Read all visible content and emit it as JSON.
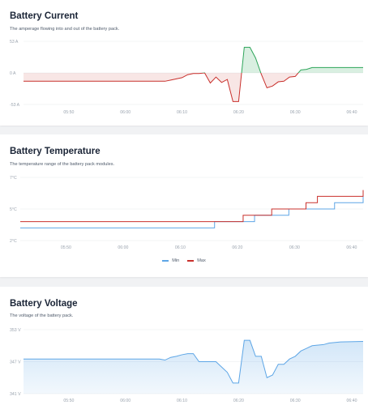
{
  "colors": {
    "current_positive": "#2ea55a",
    "current_negative": "#c9302c",
    "temp_min": "#5ea6e6",
    "temp_max": "#c9302c",
    "voltage": "#5ea6e6",
    "gridline": "#e8eaee",
    "axis_text": "#9aa3ae"
  },
  "charts": {
    "current": {
      "title": "Battery Current",
      "subtitle": "The amperage flowing into and out of the battery pack."
    },
    "temperature": {
      "title": "Battery Temperature",
      "subtitle": "The temperature range of the battery pack modules."
    },
    "voltage": {
      "title": "Battery Voltage",
      "subtitle": "The voltage of the battery pack."
    }
  },
  "chart_data": [
    {
      "type": "area",
      "x_unit": "time",
      "x_ticks": [
        "05:50",
        "06:00",
        "06:10",
        "06:20",
        "06:30",
        "06:40"
      ],
      "y_ticks": [
        "53 A",
        "0 A",
        "-53 A"
      ],
      "ylim": [
        -53,
        53
      ],
      "xlim": [
        "05:42",
        "06:42"
      ],
      "legend": "none",
      "series": [
        {
          "values": [
            [
              "05:42",
              -14
            ],
            [
              "06:07",
              -14
            ],
            [
              "06:08",
              -12
            ],
            [
              "06:09",
              -10
            ],
            [
              "06:10",
              -8
            ],
            [
              "06:11",
              -3
            ],
            [
              "06:12",
              -1
            ],
            [
              "06:13",
              -1
            ],
            [
              "06:14",
              0
            ],
            [
              "06:15",
              -17
            ],
            [
              "06:16",
              -7
            ],
            [
              "06:17",
              -16
            ],
            [
              "06:18",
              -11
            ],
            [
              "06:19",
              -48
            ],
            [
              "06:20",
              -48
            ],
            [
              "06:21",
              43
            ],
            [
              "06:22",
              43
            ],
            [
              "06:23",
              25
            ],
            [
              "06:24",
              -2
            ],
            [
              "06:25",
              -25
            ],
            [
              "06:26",
              -22
            ],
            [
              "06:27",
              -15
            ],
            [
              "06:28",
              -14
            ],
            [
              "06:29",
              -7
            ],
            [
              "06:30",
              -6
            ],
            [
              "06:31",
              5
            ],
            [
              "06:32",
              6
            ],
            [
              "06:33",
              9
            ],
            [
              "06:42",
              9
            ]
          ]
        }
      ]
    },
    {
      "type": "line",
      "x_unit": "time",
      "x_ticks": [
        "05:50",
        "06:00",
        "06:10",
        "06:20",
        "06:30",
        "06:40"
      ],
      "y_ticks": [
        "7°C",
        "5°C",
        "2°C"
      ],
      "ylim": [
        2,
        7
      ],
      "xlim": [
        "05:42",
        "06:42"
      ],
      "legend": "bottom-center",
      "series": [
        {
          "name": "Min",
          "values": [
            [
              "05:42",
              3
            ],
            [
              "06:15",
              3
            ],
            [
              "06:16",
              3.5
            ],
            [
              "06:22",
              3.5
            ],
            [
              "06:23",
              4
            ],
            [
              "06:28",
              4
            ],
            [
              "06:29",
              4.5
            ],
            [
              "06:36",
              4.5
            ],
            [
              "06:37",
              5
            ],
            [
              "06:41",
              5
            ],
            [
              "06:42",
              5.5
            ]
          ]
        },
        {
          "name": "Max",
          "values": [
            [
              "05:42",
              3.5
            ],
            [
              "06:20",
              3.5
            ],
            [
              "06:21",
              4
            ],
            [
              "06:25",
              4
            ],
            [
              "06:26",
              4.5
            ],
            [
              "06:31",
              4.5
            ],
            [
              "06:32",
              5
            ],
            [
              "06:33",
              5
            ],
            [
              "06:34",
              5.5
            ],
            [
              "06:41",
              5.5
            ],
            [
              "06:42",
              6
            ]
          ]
        }
      ]
    },
    {
      "type": "area",
      "x_unit": "time",
      "x_ticks": [
        "05:50",
        "06:00",
        "06:10",
        "06:20",
        "06:30",
        "06:40"
      ],
      "y_ticks": [
        "353 V",
        "347 V",
        "341 V"
      ],
      "ylim": [
        341,
        353
      ],
      "xlim": [
        "05:42",
        "06:42"
      ],
      "legend": "none",
      "series": [
        {
          "values": [
            [
              "05:42",
              347.5
            ],
            [
              "06:06",
              347.5
            ],
            [
              "06:07",
              347.3
            ],
            [
              "06:08",
              347.8
            ],
            [
              "06:09",
              348
            ],
            [
              "06:10",
              348.3
            ],
            [
              "06:11",
              348.5
            ],
            [
              "06:12",
              348.5
            ],
            [
              "06:13",
              347
            ],
            [
              "06:16",
              347
            ],
            [
              "06:17",
              346
            ],
            [
              "06:18",
              345
            ],
            [
              "06:19",
              343
            ],
            [
              "06:20",
              343
            ],
            [
              "06:21",
              351
            ],
            [
              "06:22",
              351
            ],
            [
              "06:23",
              348
            ],
            [
              "06:24",
              348
            ],
            [
              "06:25",
              344
            ],
            [
              "06:26",
              344.5
            ],
            [
              "06:27",
              346.5
            ],
            [
              "06:28",
              346.5
            ],
            [
              "06:29",
              347.5
            ],
            [
              "06:30",
              348
            ],
            [
              "06:31",
              349
            ],
            [
              "06:32",
              349.5
            ],
            [
              "06:33",
              350
            ],
            [
              "06:35",
              350.2
            ],
            [
              "06:36",
              350.5
            ],
            [
              "06:38",
              350.7
            ],
            [
              "06:42",
              350.8
            ]
          ]
        }
      ]
    }
  ]
}
